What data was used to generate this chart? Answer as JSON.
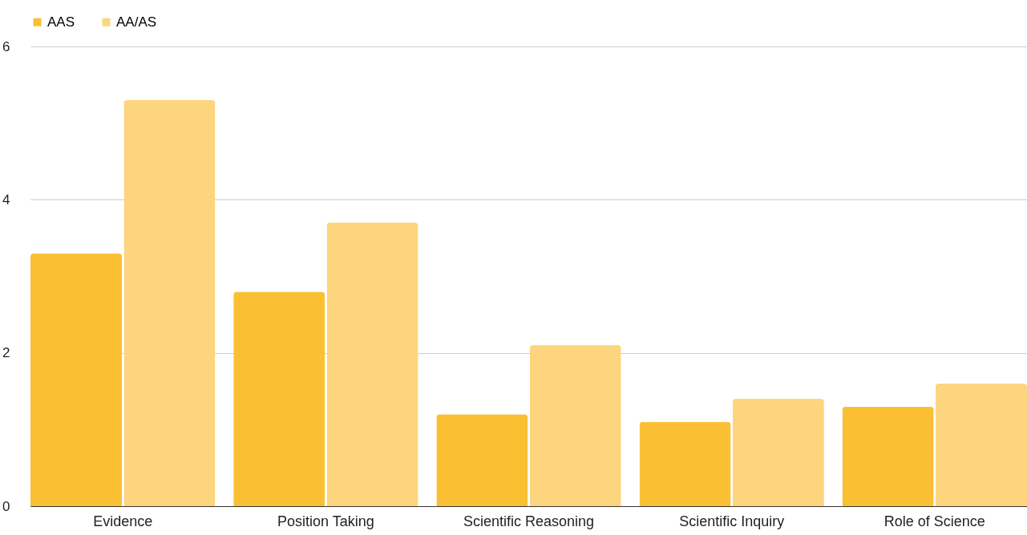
{
  "chart_data": {
    "type": "bar",
    "categories": [
      "Evidence",
      "Position Taking",
      "Scientific Reasoning",
      "Scientific Inquiry",
      "Role of Science"
    ],
    "series": [
      {
        "name": "AAS",
        "color": "#fbbf34",
        "values": [
          3.3,
          2.8,
          1.2,
          1.1,
          1.3
        ]
      },
      {
        "name": "AA/AS",
        "color": "#fdd57e",
        "values": [
          5.3,
          3.7,
          2.1,
          1.4,
          1.6
        ]
      }
    ],
    "ylim": [
      0,
      6
    ],
    "yticks": [
      0,
      2,
      4,
      6
    ],
    "grid": "y",
    "legend": "top"
  }
}
